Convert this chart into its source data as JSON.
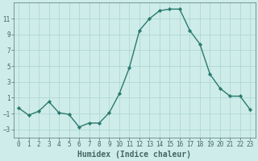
{
  "x": [
    0,
    1,
    2,
    3,
    4,
    5,
    6,
    7,
    8,
    9,
    10,
    11,
    12,
    13,
    14,
    15,
    16,
    17,
    18,
    19,
    20,
    21,
    22,
    23
  ],
  "y": [
    -0.3,
    -1.2,
    -0.7,
    0.5,
    -0.9,
    -1.1,
    -2.7,
    -2.2,
    -2.2,
    -0.9,
    1.5,
    4.8,
    9.5,
    11.0,
    12.0,
    12.2,
    12.2,
    9.5,
    7.8,
    4.0,
    2.2,
    1.2,
    1.2,
    -0.5
  ],
  "line_color": "#2a7a6e",
  "marker": "D",
  "marker_size": 2.2,
  "bg_color": "#ceecea",
  "grid_color": "#aed8d4",
  "xlabel": "Humidex (Indice chaleur)",
  "xlim": [
    -0.5,
    23.5
  ],
  "ylim": [
    -4,
    13
  ],
  "yticks": [
    -3,
    -1,
    1,
    3,
    5,
    7,
    9,
    11
  ],
  "xticks": [
    0,
    1,
    2,
    3,
    4,
    5,
    6,
    7,
    8,
    9,
    10,
    11,
    12,
    13,
    14,
    15,
    16,
    17,
    18,
    19,
    20,
    21,
    22,
    23
  ],
  "axis_color": "#446666",
  "spine_color": "#668888",
  "tick_fontsize": 5.5,
  "xlabel_fontsize": 7.0,
  "line_width": 1.0
}
